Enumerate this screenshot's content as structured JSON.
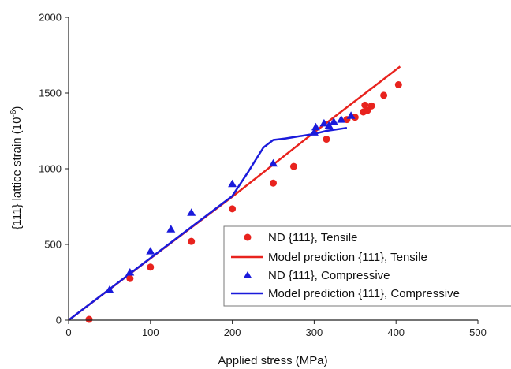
{
  "chart_data": {
    "type": "scatter",
    "title": "",
    "xlabel": "Applied stress (MPa)",
    "ylabel_main": "{111} lattice strain (10",
    "ylabel_sup": "-6",
    "ylabel_close": ")",
    "xlim": [
      0,
      500
    ],
    "ylim": [
      0,
      2000
    ],
    "xticks": [
      0,
      100,
      200,
      300,
      400,
      500
    ],
    "yticks": [
      0,
      500,
      1000,
      1500,
      2000
    ],
    "xtick_labels": [
      "0",
      "100",
      "200",
      "300",
      "400",
      "500"
    ],
    "ytick_labels": [
      "0",
      "500",
      "1000",
      "1500",
      "2000"
    ],
    "grid": false,
    "legend_position": "bottom-right",
    "colors": {
      "red": "#e8231e",
      "blue": "#1a1adb"
    },
    "series": [
      {
        "name": "ND {111}, Tensile",
        "kind": "points",
        "marker": "circle",
        "color": "#e8231e",
        "points": [
          [
            25,
            5
          ],
          [
            75,
            275
          ],
          [
            100,
            350
          ],
          [
            150,
            520
          ],
          [
            200,
            735
          ],
          [
            250,
            905
          ],
          [
            275,
            1015
          ],
          [
            315,
            1195
          ],
          [
            340,
            1325
          ],
          [
            350,
            1340
          ],
          [
            360,
            1375
          ],
          [
            362,
            1420
          ],
          [
            365,
            1385
          ],
          [
            370,
            1415
          ],
          [
            385,
            1485
          ],
          [
            403,
            1555
          ]
        ]
      },
      {
        "name": "Model prediction {111}, Tensile",
        "kind": "line",
        "color": "#e8231e",
        "points": [
          [
            0,
            0
          ],
          [
            200,
            815
          ],
          [
            300,
            1240
          ],
          [
            405,
            1675
          ]
        ]
      },
      {
        "name": "ND {111}, Compressive",
        "kind": "points",
        "marker": "triangle",
        "color": "#1a1adb",
        "points": [
          [
            50,
            200
          ],
          [
            75,
            315
          ],
          [
            100,
            455
          ],
          [
            125,
            600
          ],
          [
            150,
            710
          ],
          [
            200,
            900
          ],
          [
            250,
            1035
          ],
          [
            300,
            1240
          ],
          [
            302,
            1275
          ],
          [
            312,
            1300
          ],
          [
            318,
            1285
          ],
          [
            324,
            1310
          ],
          [
            333,
            1325
          ],
          [
            345,
            1350
          ]
        ]
      },
      {
        "name": "Model prediction {111}, Compressive",
        "kind": "line",
        "color": "#1a1adb",
        "points": [
          [
            0,
            0
          ],
          [
            200,
            820
          ],
          [
            220,
            985
          ],
          [
            238,
            1140
          ],
          [
            250,
            1190
          ],
          [
            265,
            1200
          ],
          [
            300,
            1230
          ],
          [
            315,
            1250
          ],
          [
            340,
            1270
          ]
        ]
      }
    ]
  }
}
